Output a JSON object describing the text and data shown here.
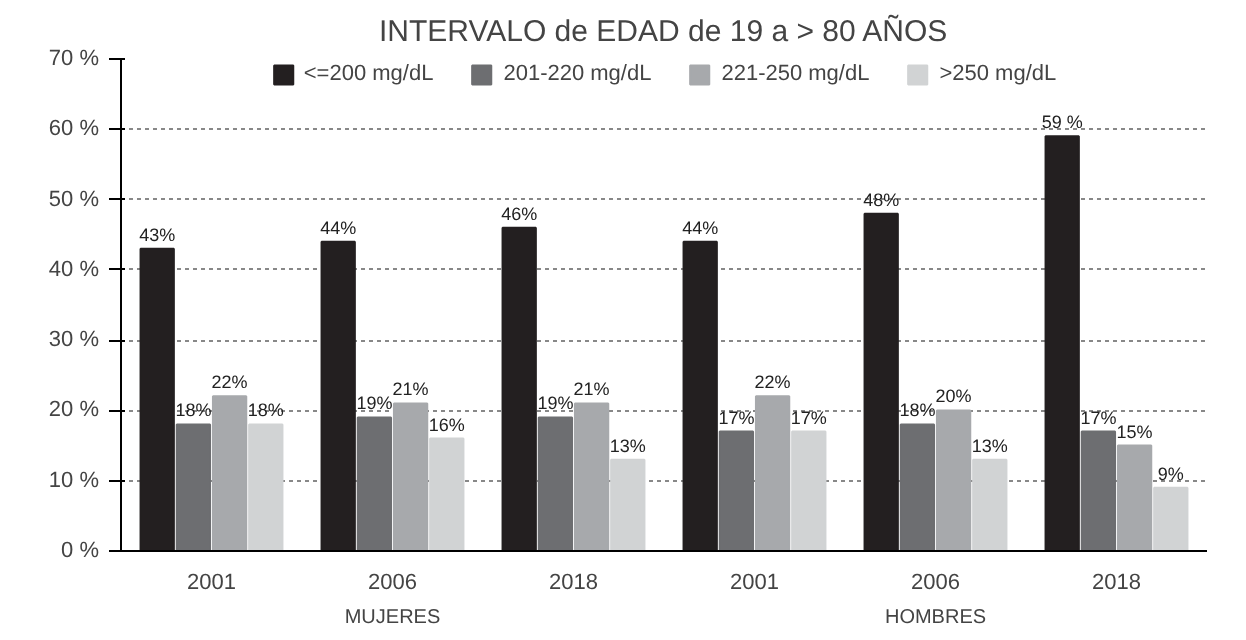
{
  "chart_data": {
    "type": "bar",
    "title": "INTERVALO de EDAD de 19 a > 80 AÑOS",
    "categories": [
      "2001",
      "2006",
      "2018",
      "2001",
      "2006",
      "2018"
    ],
    "series": [
      {
        "name": "<=200 mg/dL",
        "color": "#231f20",
        "values": [
          43,
          44,
          46,
          44,
          48,
          59
        ],
        "value_labels": [
          "43%",
          "44%",
          "46%",
          "44%",
          "48%",
          "59 %"
        ]
      },
      {
        "name": "201-220 mg/dL",
        "color": "#6d6e71",
        "values": [
          18,
          19,
          19,
          17,
          18,
          17
        ],
        "value_labels": [
          "18%",
          "19%",
          "19%",
          "17%",
          "18%",
          "17%"
        ]
      },
      {
        "name": "221-250 mg/dL",
        "color": "#a7a9ac",
        "values": [
          22,
          21,
          21,
          22,
          20,
          15
        ],
        "value_labels": [
          "22%",
          "21%",
          "21%",
          "22%",
          "20%",
          "15%"
        ]
      },
      {
        "name": ">250 mg/dL",
        "color": "#d1d3d4",
        "values": [
          18,
          16,
          13,
          17,
          13,
          9
        ],
        "value_labels": [
          "18%",
          "16%",
          "13%",
          "17%",
          "13%",
          "9%"
        ]
      }
    ],
    "ylim": [
      0,
      70
    ],
    "yticks": [
      {
        "value": 0,
        "label": "0 %"
      },
      {
        "value": 10,
        "label": "10 %"
      },
      {
        "value": 20,
        "label": "20 %"
      },
      {
        "value": 30,
        "label": "30 %"
      },
      {
        "value": 40,
        "label": "40 %"
      },
      {
        "value": 50,
        "label": "50 %"
      },
      {
        "value": 60,
        "label": "60 %"
      },
      {
        "value": 70,
        "label": "70 %"
      }
    ],
    "grid": "y",
    "legend": "top",
    "annotations": [
      "MUJERES",
      "HOMBRES"
    ]
  }
}
